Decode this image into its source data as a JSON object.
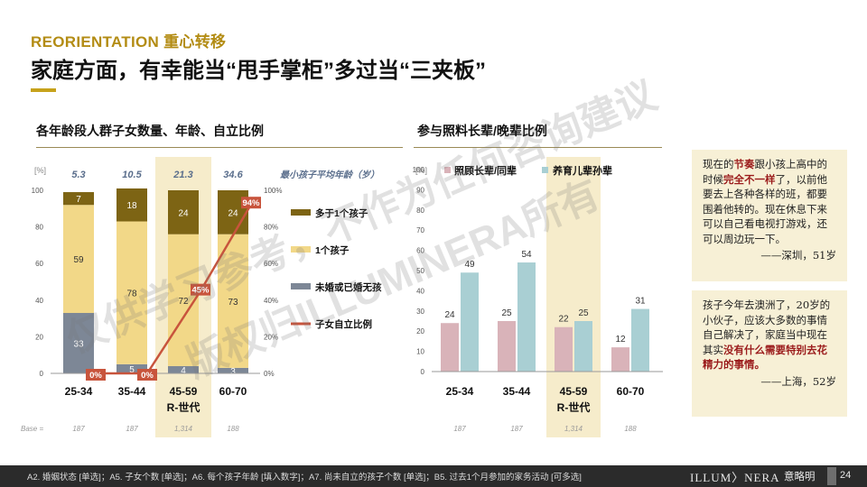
{
  "header": {
    "kicker": "REORIENTATION 重心转移",
    "title": "家庭方面，有幸能当“甩手掌柜”多过当“三夹板”"
  },
  "left_section": {
    "title": "各年龄段人群子女数量、年龄、自立比例"
  },
  "right_section": {
    "title": "参与照料长辈/晚辈比例"
  },
  "colors": {
    "more_than_one": "#7d6414",
    "one": "#f2d888",
    "none": "#7d8796",
    "independence": "#c8543c",
    "elders": "#d9b3b9",
    "juniors": "#a9cfd3",
    "highlight": "#f6eccb"
  },
  "chart_data": [
    {
      "type": "bar",
      "stacked": true,
      "categories": [
        "25-34",
        "35-44",
        "45-59",
        "60-70"
      ],
      "category_sublabels": [
        "",
        "",
        "R-世代",
        ""
      ],
      "highlight_category": "45-59",
      "unit_label": "[%]",
      "ylim": [
        0,
        100
      ],
      "yticks": [
        0,
        20,
        40,
        60,
        80,
        100
      ],
      "y2ticks": [
        "0%",
        "20%",
        "40%",
        "60%",
        "80%",
        "100%"
      ],
      "top_values_label": "最小孩子平均年龄（岁）",
      "top_values": [
        "5.3",
        "10.5",
        "21.3",
        "34.6"
      ],
      "series": [
        {
          "name": "未婚或已婚无孩",
          "values": [
            33,
            5,
            4,
            3
          ]
        },
        {
          "name": "1个孩子",
          "values": [
            59,
            78,
            72,
            73
          ]
        },
        {
          "name": "多于1个孩子",
          "values": [
            7,
            18,
            24,
            24
          ]
        }
      ],
      "line": {
        "name": "子女自立比例",
        "values": [
          0,
          0,
          45,
          94
        ],
        "labels": [
          "0%",
          "0%",
          "45%",
          "94%"
        ]
      },
      "base_label": "Base =",
      "base": [
        "187",
        "187",
        "1,314",
        "188"
      ]
    },
    {
      "type": "bar",
      "categories": [
        "25-34",
        "35-44",
        "45-59",
        "60-70"
      ],
      "category_sublabels": [
        "",
        "",
        "R-世代",
        ""
      ],
      "highlight_category": "45-59",
      "unit_label": "[%]",
      "ylim": [
        0,
        100
      ],
      "yticks": [
        0,
        10,
        20,
        30,
        40,
        50,
        60,
        70,
        80,
        90,
        100
      ],
      "series": [
        {
          "name": "照顾长辈/同辈",
          "values": [
            24,
            25,
            22,
            12
          ]
        },
        {
          "name": "养育儿辈孙辈",
          "values": [
            49,
            54,
            25,
            31
          ]
        }
      ],
      "base": [
        "187",
        "187",
        "1,314",
        "188"
      ]
    }
  ],
  "quotes": [
    {
      "text": [
        {
          "t": "现在的"
        },
        {
          "t": "节奏",
          "hl": true
        },
        {
          "t": "跟小孩上高中的时候"
        },
        {
          "t": "完全不一样",
          "hl": true
        },
        {
          "t": "了，以前他要去上各种各样的班，都要围着他转的。现在休息下来可以自己看电视打游戏，还可以周边玩一下。"
        }
      ],
      "attribution": "——深圳，51岁"
    },
    {
      "text": [
        {
          "t": "孩子今年去澳洲了，20岁的小伙子，应该大多数的事情自己解决了，家庭当中现在其实"
        },
        {
          "t": "没有什么需要特别去花精力的事情。",
          "hl": true
        }
      ],
      "attribution": "——上海，52岁"
    }
  ],
  "watermark": {
    "line1": "仅供学习参考，不作为任何咨询建议",
    "line2": "版权归ILLUMINERA所有"
  },
  "footer": {
    "note": "A2. 婚姻状态 [单选]；A5. 子女个数 [单选]；A6. 每个孩子年龄 [填入数字]；A7. 尚未自立的孩子个数 [单选]；B5. 过去1个月参加的家务活动 [可多选]",
    "brand": "ILLUM〉NERA",
    "brand_cn": "意略明",
    "page": "24"
  }
}
